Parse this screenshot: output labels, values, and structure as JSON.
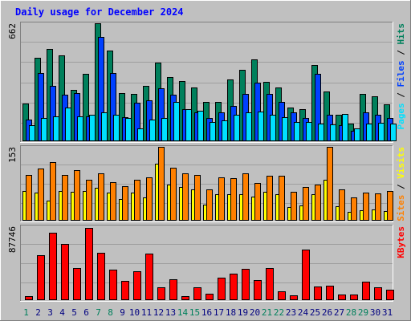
{
  "colors": {
    "background": "#c0c0c0",
    "title": "#0000ff",
    "hits": "#00805c",
    "files": "#0040ff",
    "pages": "#00e0ff",
    "visits": "#ffff00",
    "sites": "#ff8000",
    "kbytes": "#ff0000",
    "weekday": "#000080",
    "weekend": "#00805c"
  },
  "chart_data": {
    "type": "bar",
    "title": "Daily usage for December 2024",
    "categories": [
      "1",
      "2",
      "3",
      "4",
      "5",
      "6",
      "7",
      "8",
      "9",
      "10",
      "11",
      "12",
      "13",
      "14",
      "15",
      "16",
      "17",
      "18",
      "19",
      "20",
      "21",
      "22",
      "23",
      "24",
      "25",
      "26",
      "27",
      "28",
      "29",
      "30",
      "31"
    ],
    "weekend_days": [
      "1",
      "7",
      "8",
      "14",
      "15",
      "21",
      "22",
      "28",
      "29"
    ],
    "panels": [
      {
        "max_label": "662",
        "legend": [
          {
            "text": "Pages",
            "color": "#00e0ff"
          },
          {
            "text": " / ",
            "color": "#000000"
          },
          {
            "text": "Files",
            "color": "#0040ff"
          },
          {
            "text": " / ",
            "color": "#000000"
          },
          {
            "text": "Hits",
            "color": "#00805c"
          }
        ],
        "ylim": [
          0,
          662
        ],
        "series": [
          {
            "key": "hits",
            "color": "#00805c",
            "values": [
              210,
              470,
              520,
              480,
              290,
              380,
              662,
              510,
              270,
              265,
              310,
              440,
              360,
              340,
              300,
              220,
              220,
              345,
              400,
              460,
              335,
              300,
              190,
              180,
              430,
              280,
              150,
              100,
              265,
              250,
              205
            ]
          },
          {
            "key": "files",
            "color": "#0040ff",
            "values": [
              120,
              385,
              310,
              260,
              270,
              140,
              585,
              385,
              135,
              215,
              230,
              295,
              260,
              180,
              160,
              130,
              160,
              200,
              265,
              330,
              265,
              220,
              160,
              130,
              380,
              150,
              90,
              60,
              160,
              150,
              130
            ]
          },
          {
            "key": "pages",
            "color": "#00e0ff",
            "values": [
              90,
              130,
              140,
              190,
              140,
              150,
              160,
              150,
              130,
              70,
              120,
              130,
              220,
              180,
              170,
              110,
              115,
              150,
              160,
              165,
              150,
              135,
              110,
              110,
              100,
              95,
              155,
              70,
              100,
              105,
              100
            ]
          }
        ]
      },
      {
        "max_label": "153",
        "legend": [
          {
            "text": "Sites",
            "color": "#ff8000"
          },
          {
            "text": " / ",
            "color": "#000000"
          },
          {
            "text": "Visits",
            "color": "#ffff00"
          }
        ],
        "ylim": [
          0,
          153
        ],
        "series": [
          {
            "key": "visits",
            "color": "#ffff00",
            "values": [
              62,
              58,
              42,
              62,
              60,
              62,
              68,
              58,
              45,
              58,
              48,
              118,
              75,
              70,
              65,
              33,
              55,
              55,
              55,
              50,
              60,
              55,
              28,
              32,
              55,
              85,
              30,
              18,
              22,
              23,
              20
            ]
          },
          {
            "key": "sites",
            "color": "#ff8000",
            "values": [
              95,
              108,
              122,
              95,
              105,
              85,
              98,
              80,
              72,
              85,
              90,
              153,
              110,
              98,
              95,
              65,
              90,
              88,
              98,
              78,
              93,
              93,
              60,
              70,
              75,
              153,
              65,
              48,
              58,
              57,
              62
            ]
          }
        ]
      },
      {
        "max_label": "87746",
        "legend": [
          {
            "text": "KBytes",
            "color": "#ff0000"
          }
        ],
        "ylim": [
          0,
          87746
        ],
        "series": [
          {
            "key": "kbytes",
            "color": "#ff0000",
            "values": [
              5000,
              53000,
              80500,
              66500,
              38500,
              85500,
              56500,
              36000,
              23000,
              34500,
              55500,
              15000,
              24500,
              5000,
              15000,
              7500,
              26500,
              31500,
              37000,
              24000,
              38500,
              10500,
              5500,
              60500,
              16500,
              17000,
              6500,
              6500,
              21500,
              15000,
              12000
            ]
          }
        ]
      }
    ]
  }
}
